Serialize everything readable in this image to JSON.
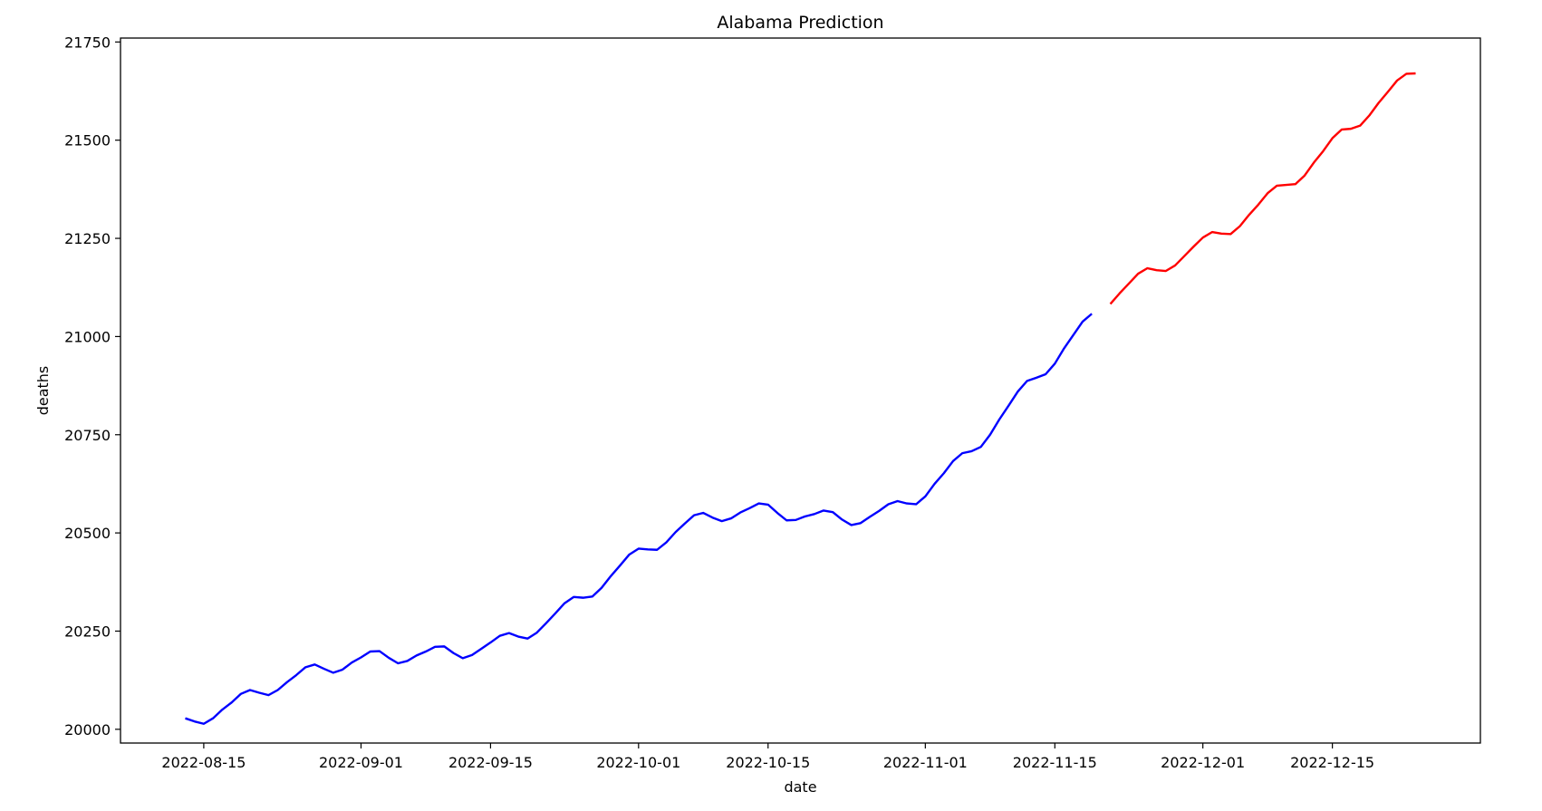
{
  "chart_data": {
    "type": "line",
    "title": "Alabama Prediction",
    "xlabel": "date",
    "ylabel": "deaths",
    "ylim": [
      19965,
      21760
    ],
    "xlim": [
      "2022-08-06",
      "2022-12-31"
    ],
    "grid": false,
    "legend": "none",
    "x_ticks": [
      "2022-08-15",
      "2022-09-01",
      "2022-09-15",
      "2022-10-01",
      "2022-10-15",
      "2022-11-01",
      "2022-11-15",
      "2022-12-01",
      "2022-12-15"
    ],
    "y_ticks": [
      20000,
      20250,
      20500,
      20750,
      21000,
      21250,
      21500,
      21750
    ],
    "series": [
      {
        "color": "#0000ff",
        "x": [
          "2022-08-13",
          "2022-08-14",
          "2022-08-15",
          "2022-08-16",
          "2022-08-17",
          "2022-08-18",
          "2022-08-19",
          "2022-08-20",
          "2022-08-21",
          "2022-08-22",
          "2022-08-23",
          "2022-08-24",
          "2022-08-25",
          "2022-08-26",
          "2022-08-27",
          "2022-08-28",
          "2022-08-29",
          "2022-08-30",
          "2022-08-31",
          "2022-09-01",
          "2022-09-02",
          "2022-09-03",
          "2022-09-04",
          "2022-09-05",
          "2022-09-06",
          "2022-09-07",
          "2022-09-08",
          "2022-09-09",
          "2022-09-10",
          "2022-09-11",
          "2022-09-12",
          "2022-09-13",
          "2022-09-14",
          "2022-09-15",
          "2022-09-16",
          "2022-09-17",
          "2022-09-18",
          "2022-09-19",
          "2022-09-20",
          "2022-09-21",
          "2022-09-22",
          "2022-09-23",
          "2022-09-24",
          "2022-09-25",
          "2022-09-26",
          "2022-09-27",
          "2022-09-28",
          "2022-09-29",
          "2022-09-30",
          "2022-10-01",
          "2022-10-02",
          "2022-10-03",
          "2022-10-04",
          "2022-10-05",
          "2022-10-06",
          "2022-10-07",
          "2022-10-08",
          "2022-10-09",
          "2022-10-10",
          "2022-10-11",
          "2022-10-12",
          "2022-10-13",
          "2022-10-14",
          "2022-10-15",
          "2022-10-16",
          "2022-10-17",
          "2022-10-18",
          "2022-10-19",
          "2022-10-20",
          "2022-10-21",
          "2022-10-22",
          "2022-10-23",
          "2022-10-24",
          "2022-10-25",
          "2022-10-26",
          "2022-10-27",
          "2022-10-28",
          "2022-10-29",
          "2022-10-30",
          "2022-10-31",
          "2022-11-01",
          "2022-11-02",
          "2022-11-03",
          "2022-11-04",
          "2022-11-05",
          "2022-11-06",
          "2022-11-07",
          "2022-11-08",
          "2022-11-09",
          "2022-11-10",
          "2022-11-11",
          "2022-11-12",
          "2022-11-13",
          "2022-11-14",
          "2022-11-15",
          "2022-11-16",
          "2022-11-17",
          "2022-11-18",
          "2022-11-19"
        ],
        "values": [
          20028,
          20020,
          20014,
          20028,
          20050,
          20068,
          20090,
          20100,
          20093,
          20087,
          20100,
          20120,
          20138,
          20158,
          20165,
          20154,
          20144,
          20152,
          20170,
          20183,
          20198,
          20199,
          20182,
          20168,
          20174,
          20188,
          20198,
          20210,
          20211,
          20194,
          20181,
          20189,
          20205,
          20221,
          20238,
          20245,
          20236,
          20231,
          20246,
          20270,
          20295,
          20321,
          20337,
          20335,
          20338,
          20360,
          20390,
          20417,
          20445,
          20460,
          20458,
          20457,
          20476,
          20502,
          20524,
          20545,
          20551,
          20539,
          20530,
          20537,
          20552,
          20563,
          20575,
          20572,
          20551,
          20532,
          20533,
          20542,
          20548,
          20557,
          20553,
          20534,
          20520,
          20525,
          20541,
          20556,
          20573,
          20581,
          20575,
          20573,
          20593,
          20625,
          20652,
          20683,
          20703,
          20708,
          20719,
          20750,
          20789,
          20824,
          20860,
          20887,
          20895,
          20904,
          20931,
          20970,
          21004,
          21038,
          21058
        ]
      },
      {
        "color": "#ff0000",
        "x": [
          "2022-11-21",
          "2022-11-22",
          "2022-11-23",
          "2022-11-24",
          "2022-11-25",
          "2022-11-26",
          "2022-11-27",
          "2022-11-28",
          "2022-11-29",
          "2022-11-30",
          "2022-12-01",
          "2022-12-02",
          "2022-12-03",
          "2022-12-04",
          "2022-12-05",
          "2022-12-06",
          "2022-12-07",
          "2022-12-08",
          "2022-12-09",
          "2022-12-10",
          "2022-12-11",
          "2022-12-12",
          "2022-12-13",
          "2022-12-14",
          "2022-12-15",
          "2022-12-16",
          "2022-12-17",
          "2022-12-18",
          "2022-12-19",
          "2022-12-20",
          "2022-12-21",
          "2022-12-22",
          "2022-12-23",
          "2022-12-24"
        ],
        "values": [
          21083,
          21110,
          21135,
          21160,
          21174,
          21169,
          21167,
          21181,
          21205,
          21229,
          21252,
          21266,
          21262,
          21261,
          21281,
          21310,
          21336,
          21365,
          21384,
          21386,
          21388,
          21410,
          21443,
          21472,
          21505,
          21527,
          21529,
          21537,
          21563,
          21595,
          21623,
          21652,
          21669,
          21670
        ]
      }
    ]
  }
}
